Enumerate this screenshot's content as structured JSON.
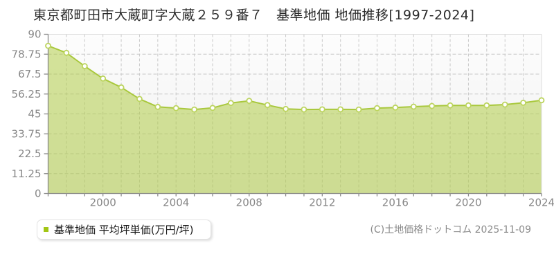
{
  "title": "東京都町田市大蔵町字大蔵２５９番７　基準地価 地価推移[1997-2024]",
  "legend": {
    "label": "基準地価 平均坪単価(万円/坪)",
    "marker_color": "#a2c614"
  },
  "copyright": "(C)土地価格ドットコム 2025-11-09",
  "chart_data": {
    "type": "area",
    "title": "東京都町田市大蔵町字大蔵２５９番７ 基準地価 地価推移[1997-2024]",
    "series_name": "基準地価 平均坪単価(万円/坪)",
    "xlabel": "",
    "ylabel": "平均坪単価(万円/坪)",
    "x": [
      1997,
      1998,
      1999,
      2000,
      2001,
      2002,
      2003,
      2004,
      2005,
      2006,
      2007,
      2008,
      2009,
      2010,
      2011,
      2012,
      2013,
      2014,
      2015,
      2016,
      2017,
      2018,
      2019,
      2020,
      2021,
      2022,
      2023,
      2024
    ],
    "values": [
      83.5,
      79.5,
      72.0,
      65.0,
      60.0,
      53.5,
      49.0,
      48.3,
      47.5,
      48.4,
      51.2,
      52.4,
      50.0,
      47.8,
      47.5,
      47.6,
      47.6,
      47.5,
      48.3,
      48.6,
      49.1,
      49.5,
      49.8,
      49.8,
      49.8,
      50.3,
      51.3,
      52.7
    ],
    "xlim": [
      1997,
      2024
    ],
    "ylim": [
      0,
      90
    ],
    "y_ticks": [
      0,
      11.25,
      22.5,
      33.75,
      45,
      56.25,
      67.5,
      78.75,
      90
    ],
    "y_tick_labels": [
      "0",
      "11.25",
      "22.5",
      "33.75",
      "45",
      "56.25",
      "67.5",
      "78.75",
      "90"
    ],
    "x_ticks": [
      2000,
      2004,
      2008,
      2012,
      2016,
      2020,
      2024
    ],
    "x_tick_labels": [
      "2000",
      "2004",
      "2008",
      "2012",
      "2016",
      "2020",
      "2024"
    ],
    "grid": true,
    "legend_position": "bottom-left",
    "colors": {
      "area_fill": "#abc937",
      "area_opacity": 0.5,
      "line": "#a9c83d",
      "marker_fill": "#ffffff",
      "marker_stroke": "#bcd45e",
      "grid": "#c8c8c8",
      "axis": "#8a8a8a",
      "border": "#dcdcdc",
      "tick_label": "#878787",
      "bg_top": "#fdfdfd",
      "bg_bottom": "#eeeeee"
    }
  }
}
